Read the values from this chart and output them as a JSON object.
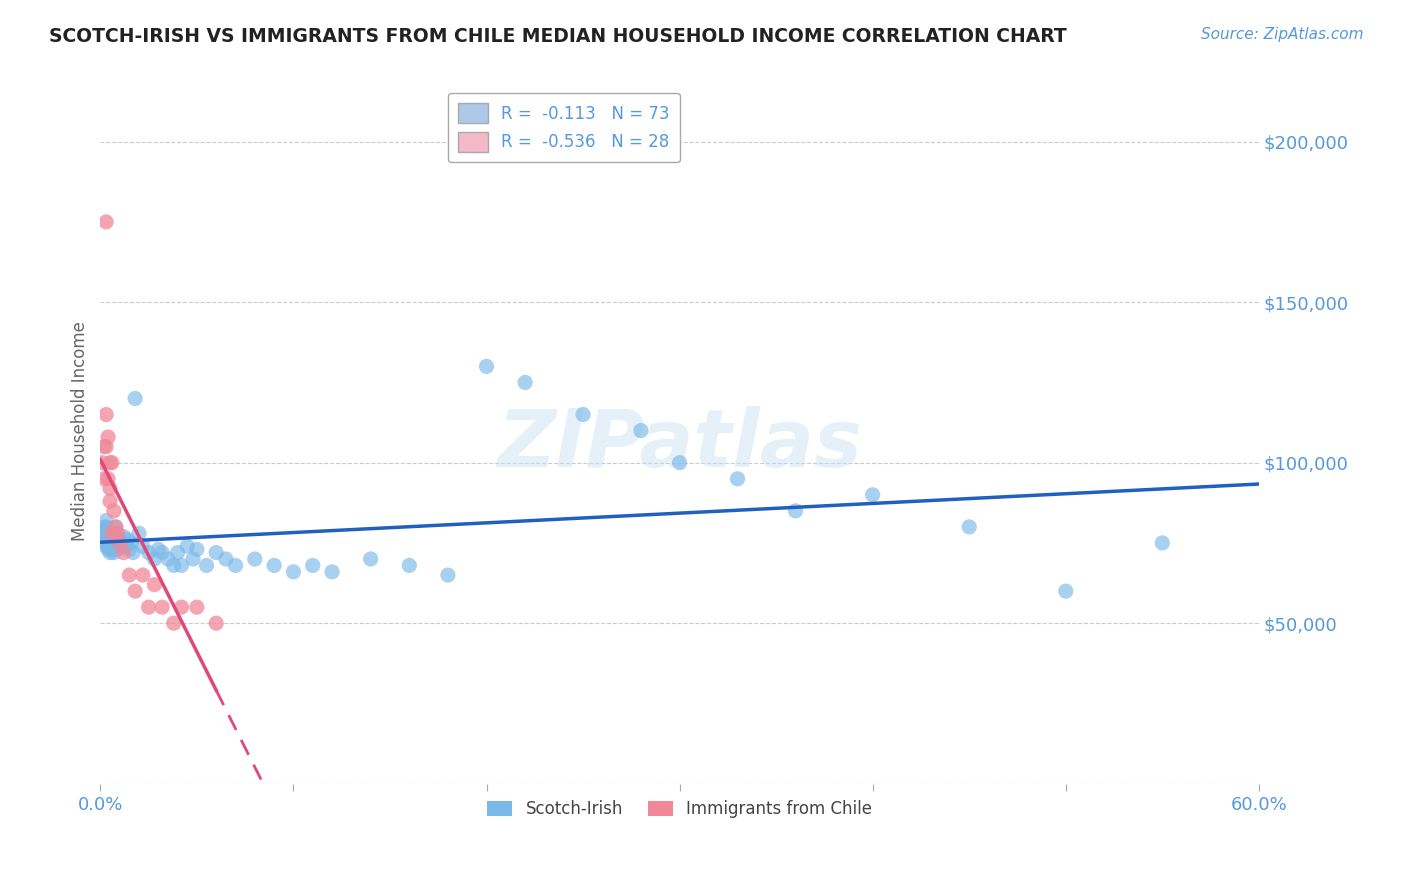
{
  "title": "SCOTCH-IRISH VS IMMIGRANTS FROM CHILE MEDIAN HOUSEHOLD INCOME CORRELATION CHART",
  "source": "Source: ZipAtlas.com",
  "ylabel": "Median Household Income",
  "xlim": [
    0.0,
    0.6
  ],
  "ylim": [
    0,
    220000
  ],
  "yticks": [
    0,
    50000,
    100000,
    150000,
    200000
  ],
  "ytick_labels_right": [
    "",
    "$50,000",
    "$100,000",
    "$150,000",
    "$200,000"
  ],
  "xtick_labels": [
    "0.0%",
    "",
    "",
    "",
    "",
    "",
    "60.0%"
  ],
  "legend1_label": "R =  -0.113   N = 73",
  "legend2_label": "R =  -0.536   N = 28",
  "legend1_color": "#adc8e8",
  "legend2_color": "#f4b8c8",
  "scatter1_color": "#7ab8e8",
  "scatter2_color": "#f08898",
  "line1_color": "#2060c0",
  "line2_color": "#e04878",
  "background_color": "#ffffff",
  "title_color": "#222222",
  "axis_color": "#5599dd",
  "watermark": "ZIPatlas",
  "scotch_irish_x": [
    0.001,
    0.001,
    0.002,
    0.002,
    0.002,
    0.003,
    0.003,
    0.003,
    0.003,
    0.004,
    0.004,
    0.004,
    0.004,
    0.005,
    0.005,
    0.005,
    0.005,
    0.006,
    0.006,
    0.006,
    0.007,
    0.007,
    0.007,
    0.008,
    0.008,
    0.009,
    0.009,
    0.01,
    0.01,
    0.011,
    0.012,
    0.013,
    0.014,
    0.015,
    0.016,
    0.017,
    0.018,
    0.02,
    0.022,
    0.025,
    0.028,
    0.03,
    0.032,
    0.035,
    0.038,
    0.04,
    0.042,
    0.045,
    0.048,
    0.05,
    0.055,
    0.06,
    0.065,
    0.07,
    0.08,
    0.09,
    0.1,
    0.11,
    0.12,
    0.14,
    0.16,
    0.18,
    0.2,
    0.22,
    0.25,
    0.28,
    0.3,
    0.33,
    0.36,
    0.4,
    0.45,
    0.5,
    0.55
  ],
  "scotch_irish_y": [
    78000,
    76000,
    80000,
    75000,
    79000,
    77000,
    80000,
    74000,
    82000,
    76000,
    78000,
    73000,
    75000,
    74000,
    78000,
    72000,
    76000,
    75000,
    73000,
    77000,
    74000,
    76000,
    72000,
    78000,
    80000,
    75000,
    73000,
    74000,
    76000,
    75000,
    77000,
    74000,
    76000,
    73000,
    75000,
    72000,
    120000,
    78000,
    74000,
    72000,
    70000,
    73000,
    72000,
    70000,
    68000,
    72000,
    68000,
    74000,
    70000,
    73000,
    68000,
    72000,
    70000,
    68000,
    70000,
    68000,
    66000,
    68000,
    66000,
    70000,
    68000,
    65000,
    130000,
    125000,
    115000,
    110000,
    100000,
    95000,
    85000,
    90000,
    80000,
    60000,
    75000
  ],
  "chile_x": [
    0.001,
    0.002,
    0.002,
    0.003,
    0.003,
    0.003,
    0.004,
    0.004,
    0.005,
    0.005,
    0.005,
    0.006,
    0.006,
    0.007,
    0.008,
    0.009,
    0.01,
    0.012,
    0.015,
    0.018,
    0.022,
    0.025,
    0.028,
    0.032,
    0.038,
    0.042,
    0.05,
    0.06
  ],
  "chile_y": [
    100000,
    105000,
    95000,
    115000,
    175000,
    105000,
    95000,
    108000,
    100000,
    88000,
    92000,
    100000,
    78000,
    85000,
    80000,
    78000,
    75000,
    72000,
    65000,
    60000,
    65000,
    55000,
    62000,
    55000,
    50000,
    55000,
    55000,
    50000
  ]
}
